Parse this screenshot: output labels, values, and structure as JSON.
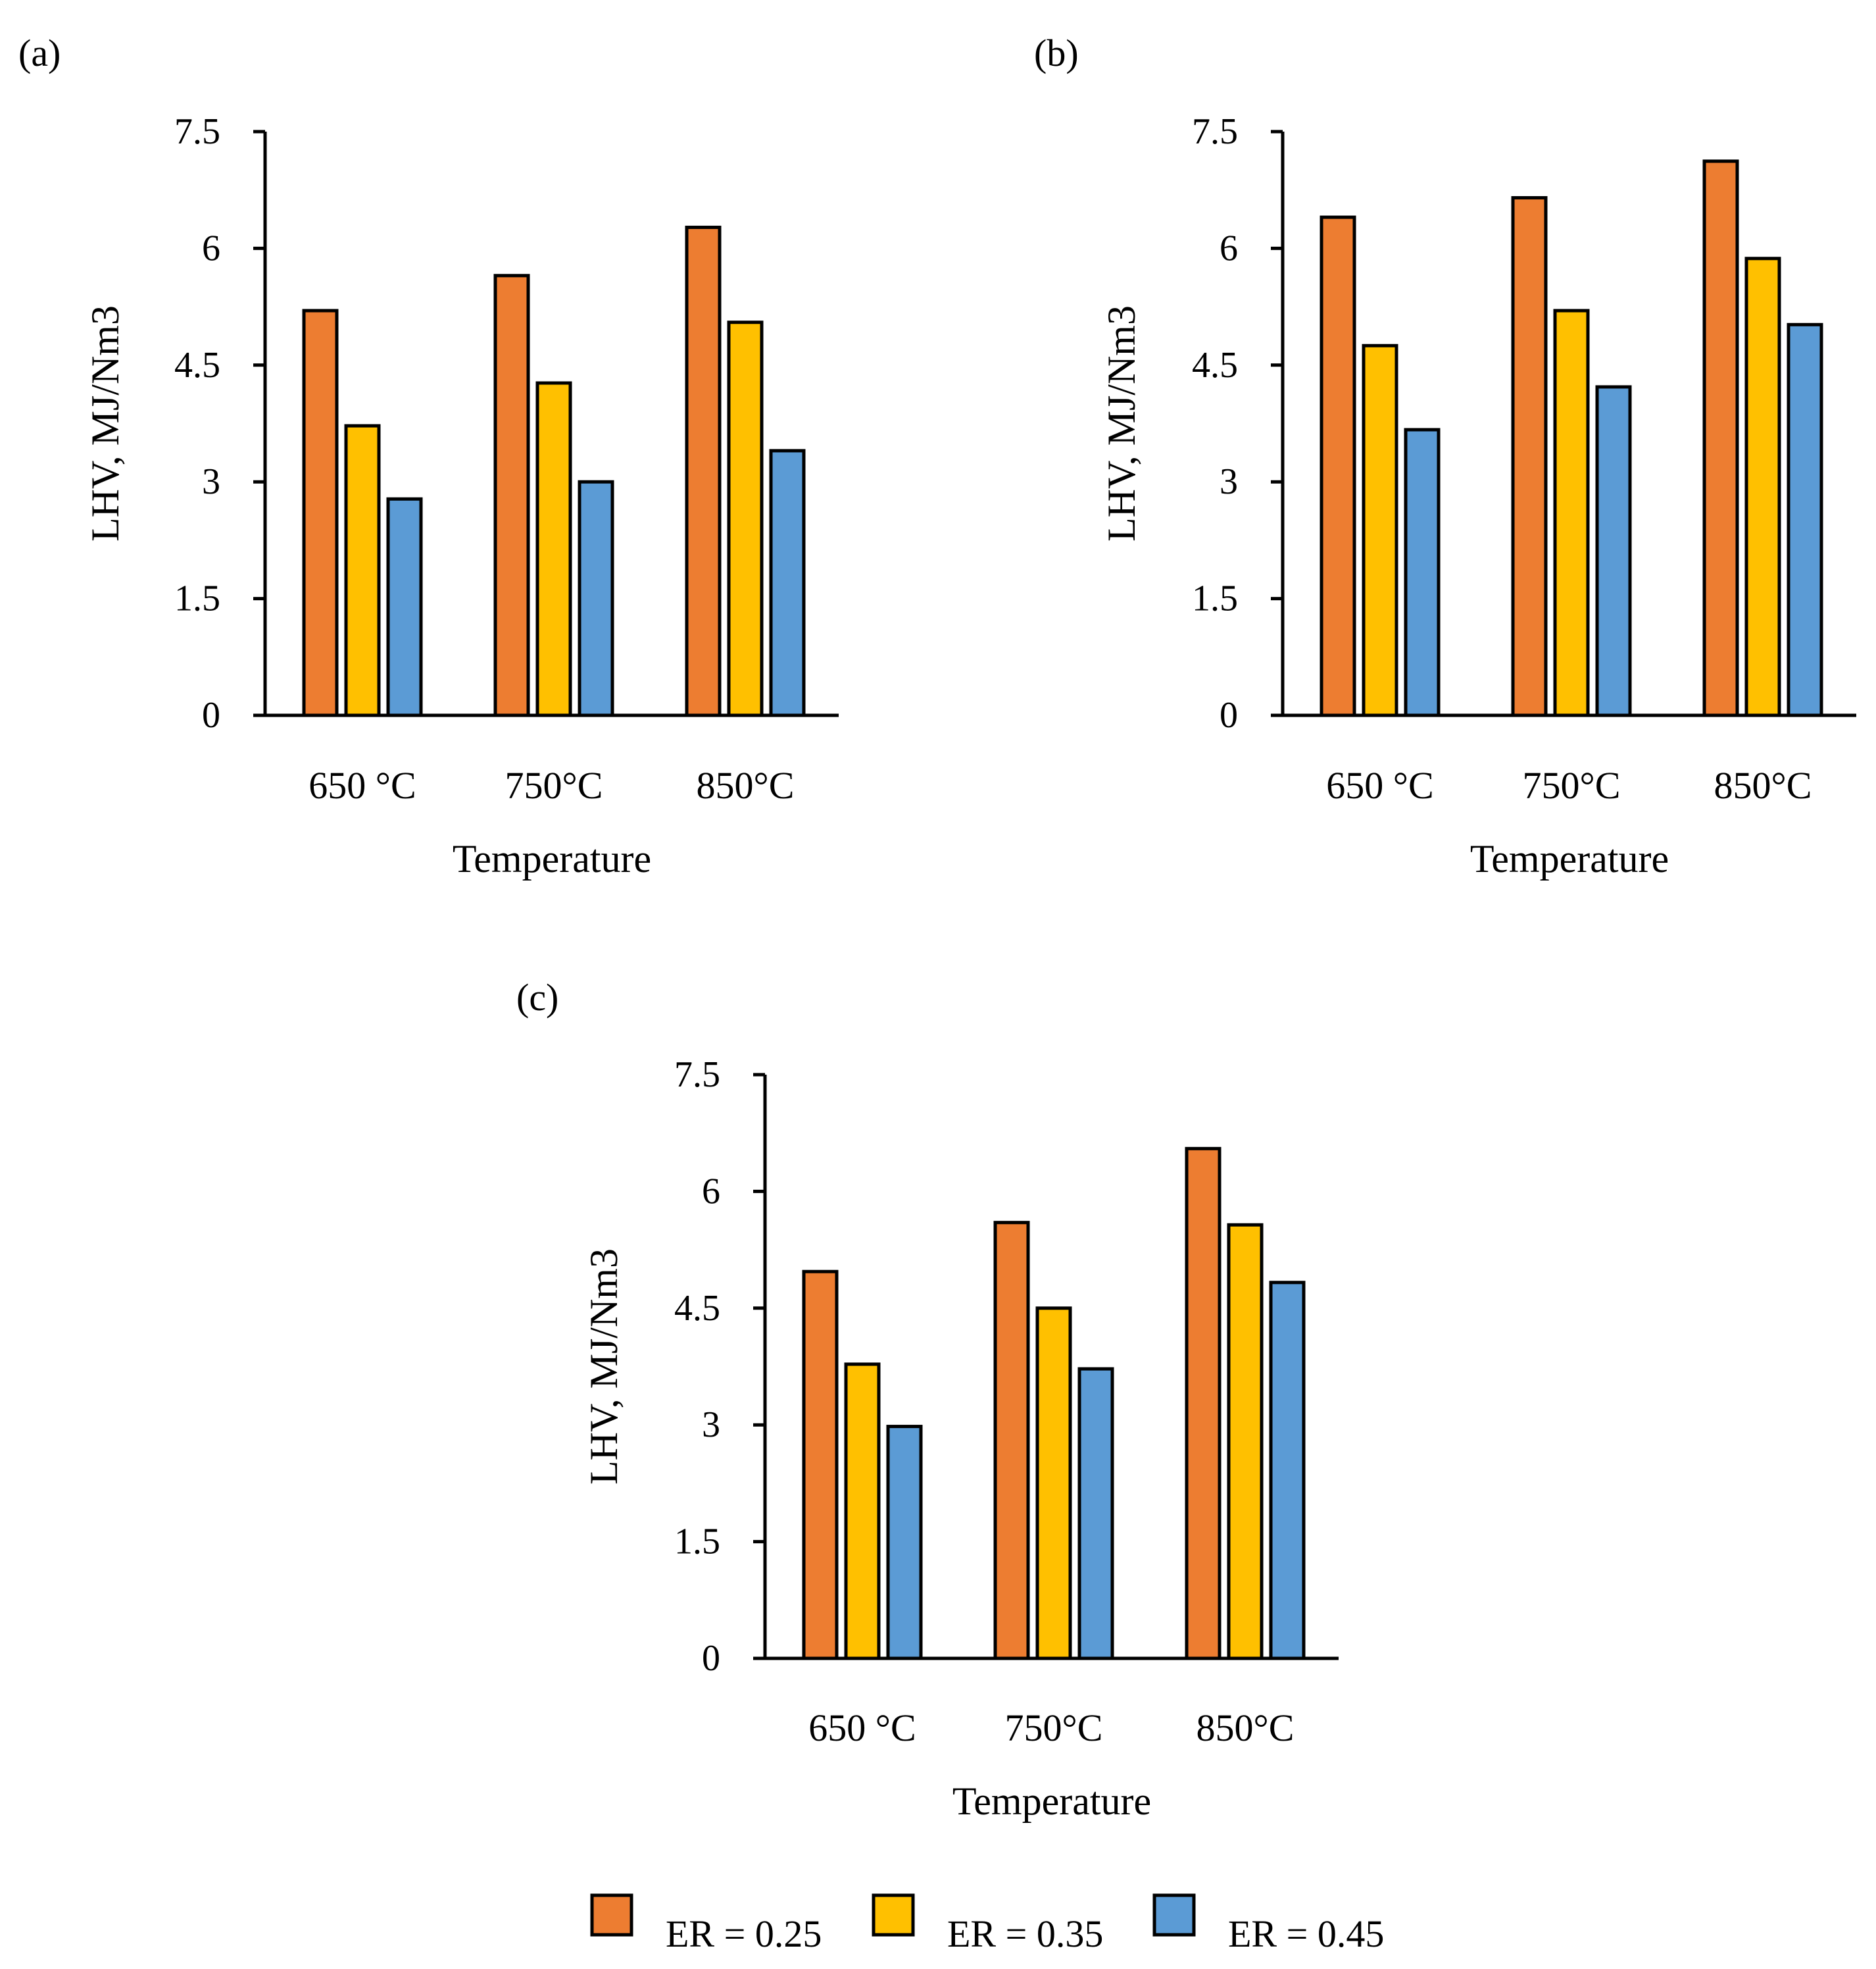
{
  "legend": [
    {
      "label": "ER = 0.25",
      "color": "#ED7D31"
    },
    {
      "label": "ER = 0.35",
      "color": "#FFC000"
    },
    {
      "label": "ER = 0.45",
      "color": "#5B9BD5"
    }
  ],
  "chart_data": [
    {
      "panel": "(a)",
      "type": "bar",
      "categories": [
        "650 °C",
        "750°C",
        "850°C"
      ],
      "series": [
        {
          "name": "ER = 0.25",
          "values": [
            5.2,
            5.65,
            6.27
          ]
        },
        {
          "name": "ER = 0.35",
          "values": [
            3.72,
            4.27,
            5.05
          ]
        },
        {
          "name": "ER = 0.45",
          "values": [
            2.78,
            3.0,
            3.4
          ]
        }
      ],
      "xlabel": "Temperature",
      "ylabel": "LHV, MJ/Nm3",
      "ylim": [
        0,
        7.5
      ],
      "yticks": [
        "0",
        "1.5",
        "3",
        "4.5",
        "6",
        "7.5"
      ]
    },
    {
      "panel": "(b)",
      "type": "bar",
      "categories": [
        "650 °C",
        "750°C",
        "850°C"
      ],
      "series": [
        {
          "name": "ER = 0.25",
          "values": [
            6.4,
            6.65,
            7.12
          ]
        },
        {
          "name": "ER = 0.35",
          "values": [
            4.75,
            5.2,
            5.87
          ]
        },
        {
          "name": "ER = 0.45",
          "values": [
            3.67,
            4.22,
            5.02
          ]
        }
      ],
      "xlabel": "Temperature",
      "ylabel": "LHV, MJ/Nm3",
      "ylim": [
        0,
        7.5
      ],
      "yticks": [
        "0",
        "1.5",
        "3",
        "4.5",
        "6",
        "7.5"
      ]
    },
    {
      "panel": "(c)",
      "type": "bar",
      "categories": [
        "650 °C",
        "750°C",
        "850°C"
      ],
      "series": [
        {
          "name": "ER = 0.25",
          "values": [
            4.97,
            5.6,
            6.55
          ]
        },
        {
          "name": "ER = 0.35",
          "values": [
            3.78,
            4.5,
            5.57
          ]
        },
        {
          "name": "ER = 0.45",
          "values": [
            2.98,
            3.72,
            4.83
          ]
        }
      ],
      "xlabel": "Temperature",
      "ylabel": "LHV, MJ/Nm3",
      "ylim": [
        0,
        7.5
      ],
      "yticks": [
        "0",
        "1.5",
        "3",
        "4.5",
        "6",
        "7.5"
      ]
    }
  ]
}
